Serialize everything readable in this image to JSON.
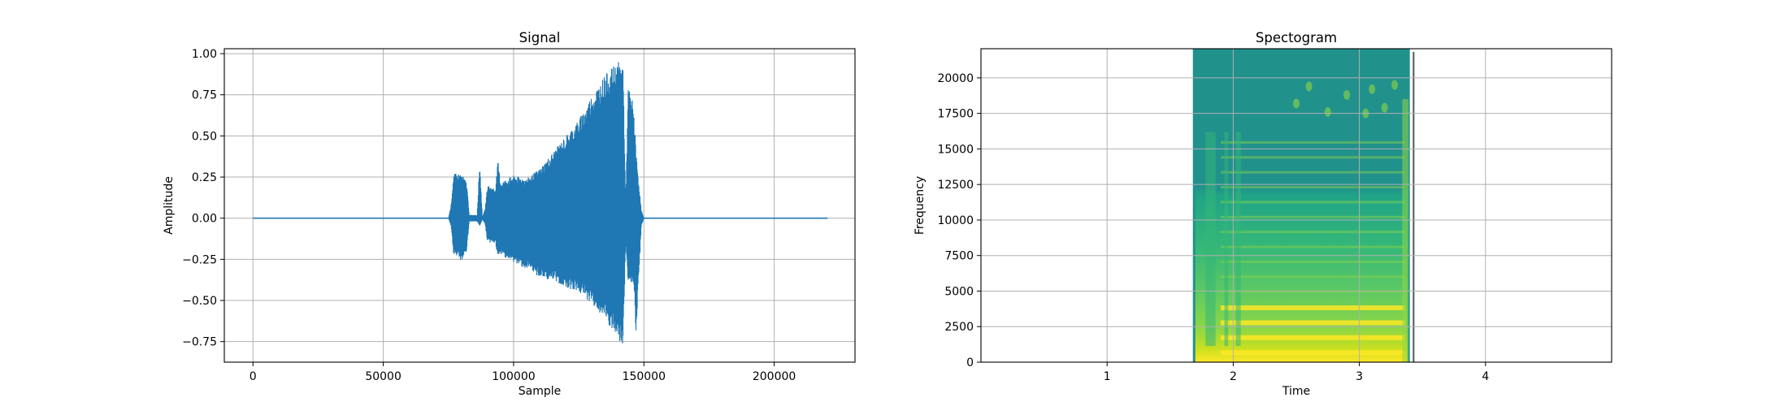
{
  "chart_data": [
    {
      "type": "line",
      "title": "Signal",
      "xlabel": "Sample",
      "ylabel": "Amplitude",
      "xlim": [
        -11000,
        231000
      ],
      "ylim": [
        -0.875,
        1.03
      ],
      "xticks": [
        0,
        50000,
        100000,
        150000,
        200000
      ],
      "xtick_labels": [
        "0",
        "50000",
        "100000",
        "150000",
        "200000"
      ],
      "yticks": [
        -0.75,
        -0.5,
        -0.25,
        0.0,
        0.25,
        0.5,
        0.75,
        1.0
      ],
      "ytick_labels": [
        "−0.75",
        "−0.50",
        "−0.25",
        "0.00",
        "0.25",
        "0.50",
        "0.75",
        "1.00"
      ],
      "grid": true,
      "color": "#1f77b4",
      "series": [
        {
          "kind": "waveform_envelope",
          "x_start": 0,
          "x_end": 220500,
          "envelope": [
            {
              "x": 0,
              "upper": 0.0,
              "lower": 0.0
            },
            {
              "x": 75000,
              "upper": 0.0,
              "lower": 0.0
            },
            {
              "x": 76000,
              "upper": 0.08,
              "lower": -0.05
            },
            {
              "x": 77000,
              "upper": 0.27,
              "lower": -0.22
            },
            {
              "x": 80000,
              "upper": 0.27,
              "lower": -0.26
            },
            {
              "x": 82000,
              "upper": 0.22,
              "lower": -0.2
            },
            {
              "x": 83000,
              "upper": 0.02,
              "lower": -0.02
            },
            {
              "x": 86000,
              "upper": 0.02,
              "lower": -0.02
            },
            {
              "x": 87000,
              "upper": 0.35,
              "lower": -0.05
            },
            {
              "x": 88000,
              "upper": 0.01,
              "lower": -0.01
            },
            {
              "x": 89000,
              "upper": 0.05,
              "lower": -0.03
            },
            {
              "x": 90000,
              "upper": 0.2,
              "lower": -0.15
            },
            {
              "x": 93000,
              "upper": 0.18,
              "lower": -0.15
            },
            {
              "x": 94000,
              "upper": 0.35,
              "lower": -0.25
            },
            {
              "x": 95000,
              "upper": 0.22,
              "lower": -0.22
            },
            {
              "x": 100000,
              "upper": 0.26,
              "lower": -0.27
            },
            {
              "x": 105000,
              "upper": 0.24,
              "lower": -0.31
            },
            {
              "x": 110000,
              "upper": 0.3,
              "lower": -0.36
            },
            {
              "x": 115000,
              "upper": 0.4,
              "lower": -0.38
            },
            {
              "x": 120000,
              "upper": 0.5,
              "lower": -0.42
            },
            {
              "x": 125000,
              "upper": 0.6,
              "lower": -0.45
            },
            {
              "x": 130000,
              "upper": 0.75,
              "lower": -0.52
            },
            {
              "x": 135000,
              "upper": 0.87,
              "lower": -0.62
            },
            {
              "x": 140000,
              "upper": 0.95,
              "lower": -0.74
            },
            {
              "x": 142000,
              "upper": 0.95,
              "lower": -0.79
            },
            {
              "x": 143000,
              "upper": 0.1,
              "lower": -0.15
            },
            {
              "x": 144000,
              "upper": 0.8,
              "lower": -0.4
            },
            {
              "x": 146000,
              "upper": 0.7,
              "lower": -0.4
            },
            {
              "x": 147000,
              "upper": 0.4,
              "lower": -0.7
            },
            {
              "x": 149000,
              "upper": 0.05,
              "lower": -0.05
            },
            {
              "x": 150000,
              "upper": 0.0,
              "lower": 0.0
            },
            {
              "x": 220500,
              "upper": 0.0,
              "lower": 0.0
            }
          ]
        }
      ]
    },
    {
      "type": "heatmap",
      "title": "Spectogram",
      "xlabel": "Time",
      "ylabel": "Frequency",
      "xlim": [
        0,
        5
      ],
      "ylim": [
        0,
        22050
      ],
      "xticks": [
        1,
        2,
        3,
        4
      ],
      "xtick_labels": [
        "1",
        "2",
        "3",
        "4"
      ],
      "yticks": [
        0,
        2500,
        5000,
        7500,
        10000,
        12500,
        15000,
        17500,
        20000
      ],
      "ytick_labels": [
        "0",
        "2500",
        "5000",
        "7500",
        "10000",
        "12500",
        "15000",
        "17500",
        "20000"
      ],
      "grid": true,
      "colormap": "viridis",
      "active_time_range": [
        1.68,
        3.4
      ],
      "marker_line_time": 3.43,
      "colors": {
        "background": "#21918c",
        "mid": "#35b779",
        "high": "#90d743",
        "peak": "#fde725"
      }
    }
  ]
}
